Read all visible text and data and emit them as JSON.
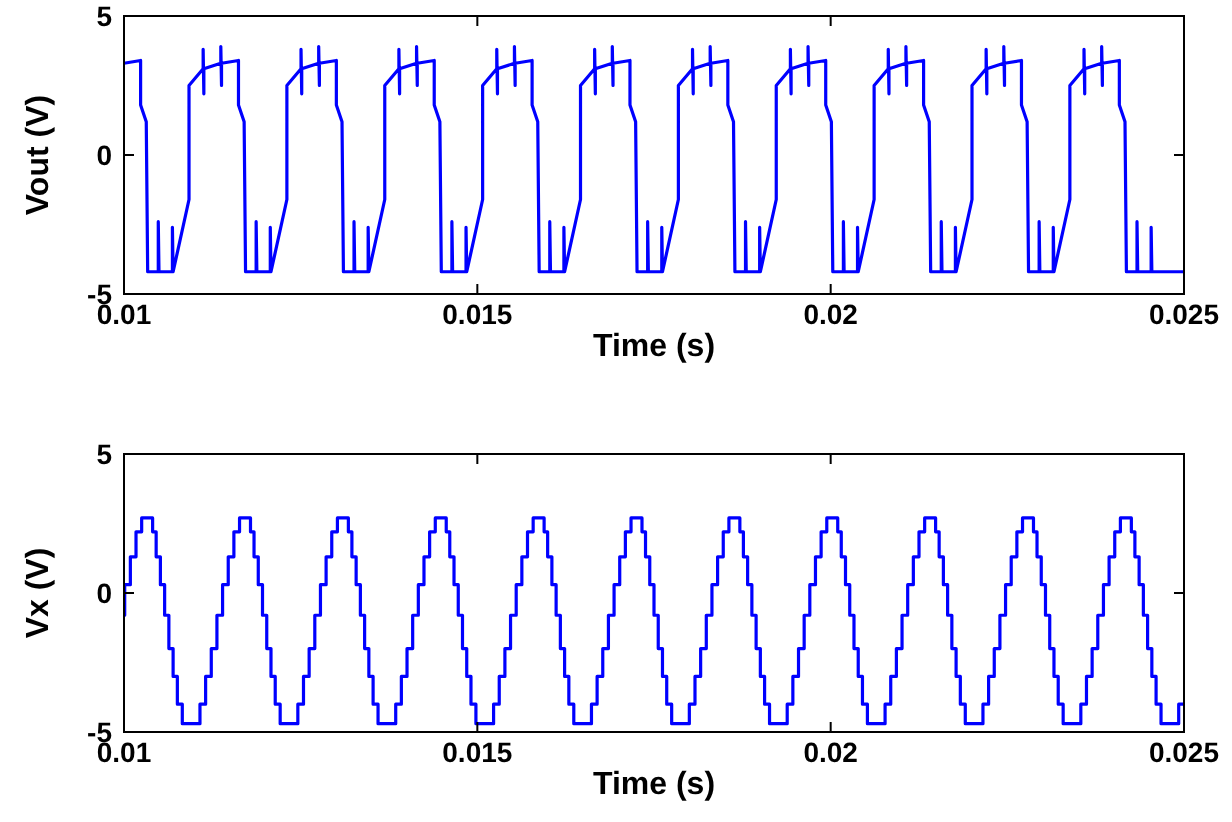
{
  "chart_data": [
    {
      "type": "line",
      "xlabel": "Time (s)",
      "ylabel": "Vout (V)",
      "xlim": [
        0.01,
        0.025
      ],
      "ylim": [
        -5,
        5
      ],
      "xticks": [
        0.01,
        0.015,
        0.02,
        0.025
      ],
      "yticks": [
        -5,
        0,
        5
      ],
      "series": [
        {
          "color": "#0000ff",
          "x": [
            0.01,
            0.010235,
            0.010235,
            0.010315,
            0.010335,
            0.010485,
            0.010485,
            0.010495,
            0.010685,
            0.010685,
            0.010695,
            0.01092,
            0.01092,
            0.01112,
            0.01112,
            0.01113,
            0.01113,
            0.01137,
            0.01137,
            0.01138,
            0.01138,
            0.01162,
            0.01162,
            0.0117,
            0.01172,
            0.01187,
            0.01187,
            0.01188,
            0.01207,
            0.01207,
            0.01208,
            0.012305,
            0.012305,
            0.012505,
            0.012505,
            0.012515,
            0.012515,
            0.012755,
            0.012755,
            0.012765,
            0.012765,
            0.013005,
            0.013005,
            0.013085,
            0.013105,
            0.013255,
            0.013255,
            0.013265,
            0.013455,
            0.013455,
            0.013465,
            0.01369,
            0.01369,
            0.01389,
            0.01389,
            0.0139,
            0.0139,
            0.01414,
            0.01414,
            0.01415,
            0.01415,
            0.01439,
            0.01439,
            0.01447,
            0.01449,
            0.01464,
            0.01464,
            0.01465,
            0.01484,
            0.01484,
            0.01485,
            0.015075,
            0.015075,
            0.015275,
            0.015275,
            0.015285,
            0.015285,
            0.015525,
            0.015525,
            0.015535,
            0.015535,
            0.015775,
            0.015775,
            0.015855,
            0.015875,
            0.016025,
            0.016025,
            0.016035,
            0.016225,
            0.016225,
            0.016235,
            0.01646,
            0.01646,
            0.01666,
            0.01666,
            0.01667,
            0.01667,
            0.01691,
            0.01691,
            0.01692,
            0.01692,
            0.01716,
            0.01716,
            0.01724,
            0.01726,
            0.01741,
            0.01741,
            0.01742,
            0.01761,
            0.01761,
            0.01762,
            0.017845,
            0.017845,
            0.018045,
            0.018045,
            0.018055,
            0.018055,
            0.018295,
            0.018295,
            0.018305,
            0.018305,
            0.018545,
            0.018545,
            0.018625,
            0.018645,
            0.018795,
            0.018795,
            0.018805,
            0.018995,
            0.018995,
            0.019005,
            0.01923,
            0.01923,
            0.01943,
            0.01943,
            0.01944,
            0.01944,
            0.01968,
            0.01968,
            0.01969,
            0.01969,
            0.01993,
            0.01993,
            0.02001,
            0.02003,
            0.02018,
            0.02018,
            0.02019,
            0.02038,
            0.02038,
            0.02039,
            0.020615,
            0.020615,
            0.020815,
            0.020815,
            0.020825,
            0.020825,
            0.021065,
            0.021065,
            0.021075,
            0.021075,
            0.021315,
            0.021315,
            0.021395,
            0.021415,
            0.021565,
            0.021565,
            0.021575,
            0.021765,
            0.021765,
            0.021775,
            0.022,
            0.022,
            0.0222,
            0.0222,
            0.02221,
            0.02221,
            0.02245,
            0.02245,
            0.02246,
            0.02246,
            0.0227,
            0.0227,
            0.02278,
            0.0228,
            0.02295,
            0.02295,
            0.02296,
            0.02315,
            0.02315,
            0.02316,
            0.023385,
            0.023385,
            0.023585,
            0.023585,
            0.023595,
            0.023595,
            0.023835,
            0.023835,
            0.023845,
            0.023845,
            0.024085,
            0.024085,
            0.024165,
            0.024185,
            0.024335,
            0.024335,
            0.024345,
            0.024535,
            0.024535,
            0.024545,
            0.025
          ],
          "values": [
            3.3,
            3.4,
            1.8,
            1.2,
            -4.2,
            -4.2,
            -2.4,
            -4.2,
            -4.2,
            -2.6,
            -4.2,
            -1.6,
            2.5,
            3.1,
            3.8,
            2.2,
            3.1,
            3.3,
            3.9,
            2.5,
            3.3,
            3.4,
            1.8,
            1.2,
            -4.2,
            -4.2,
            -2.4,
            -4.2,
            -4.2,
            -2.6,
            -4.2,
            -1.6,
            2.5,
            3.1,
            3.8,
            2.2,
            3.1,
            3.3,
            3.9,
            2.5,
            3.3,
            3.4,
            1.8,
            1.2,
            -4.2,
            -4.2,
            -2.4,
            -4.2,
            -4.2,
            -2.6,
            -4.2,
            -1.6,
            2.5,
            3.1,
            3.8,
            2.2,
            3.1,
            3.3,
            3.9,
            2.5,
            3.3,
            3.4,
            1.8,
            1.2,
            -4.2,
            -4.2,
            -2.4,
            -4.2,
            -4.2,
            -2.6,
            -4.2,
            -1.6,
            2.5,
            3.1,
            3.8,
            2.2,
            3.1,
            3.3,
            3.9,
            2.5,
            3.3,
            3.4,
            1.8,
            1.2,
            -4.2,
            -4.2,
            -2.4,
            -4.2,
            -4.2,
            -2.6,
            -4.2,
            -1.6,
            2.5,
            3.1,
            3.8,
            2.2,
            3.1,
            3.3,
            3.9,
            2.5,
            3.3,
            3.4,
            1.8,
            1.2,
            -4.2,
            -4.2,
            -2.4,
            -4.2,
            -4.2,
            -2.6,
            -4.2,
            -1.6,
            2.5,
            3.1,
            3.8,
            2.2,
            3.1,
            3.3,
            3.9,
            2.5,
            3.3,
            3.4,
            1.8,
            1.2,
            -4.2,
            -4.2,
            -2.4,
            -4.2,
            -4.2,
            -2.6,
            -4.2,
            -1.6,
            2.5,
            3.1,
            3.8,
            2.2,
            3.1,
            3.3,
            3.9,
            2.5,
            3.3,
            3.4,
            1.8,
            1.2,
            -4.2,
            -4.2,
            -2.4,
            -4.2,
            -4.2,
            -2.6,
            -4.2,
            -1.6,
            2.5,
            3.1,
            3.8,
            2.2,
            3.1,
            3.3,
            3.9,
            2.5,
            3.3,
            3.4,
            1.8,
            1.2,
            -4.2,
            -4.2,
            -2.4,
            -4.2,
            -4.2,
            -2.6,
            -4.2,
            -1.6,
            2.5,
            3.1,
            3.8,
            2.2,
            3.1,
            3.3,
            3.9,
            2.5,
            3.3,
            3.4,
            1.8,
            1.2,
            -4.2,
            -4.2,
            -2.4,
            -4.2,
            -4.2,
            -2.6,
            -4.2,
            -1.6,
            2.5,
            3.1,
            3.8,
            2.2,
            3.1,
            3.3,
            3.9,
            2.5,
            3.3,
            3.4,
            1.8,
            1.2,
            -4.2,
            -4.2,
            -2.4,
            -4.2,
            -4.2,
            -2.6,
            -4.2,
            -4.2
          ]
        }
      ]
    },
    {
      "type": "step",
      "xlabel": "Time (s)",
      "ylabel": "Vx (V)",
      "xlim": [
        0.01,
        0.025
      ],
      "ylim": [
        -5,
        5
      ],
      "xticks": [
        0.01,
        0.015,
        0.02,
        0.025
      ],
      "yticks": [
        -5,
        0,
        5
      ],
      "series": [
        {
          "color": "#0000ff",
          "x": [
            0.01,
            0.01001,
            0.01009,
            0.01017,
            0.01025,
            0.010405,
            0.010455,
            0.010515,
            0.010575,
            0.010635,
            0.010695,
            0.010755,
            0.010825,
            0.011075,
            0.011155,
            0.011235,
            0.011315,
            0.011395,
            0.011475,
            0.011555,
            0.011635,
            0.01179,
            0.01184,
            0.0119,
            0.01196,
            0.01202,
            0.01208,
            0.01214,
            0.01221,
            0.01246,
            0.01254,
            0.01262,
            0.0127,
            0.01278,
            0.01286,
            0.01294,
            0.01302,
            0.013175,
            0.013225,
            0.013285,
            0.013345,
            0.013405,
            0.013465,
            0.013525,
            0.013595,
            0.013845,
            0.013925,
            0.014005,
            0.014085,
            0.014165,
            0.014245,
            0.014325,
            0.014405,
            0.01456,
            0.01461,
            0.01467,
            0.01473,
            0.01479,
            0.01485,
            0.01491,
            0.01498,
            0.01523,
            0.01531,
            0.01539,
            0.01547,
            0.01555,
            0.01563,
            0.01571,
            0.01579,
            0.015945,
            0.015995,
            0.016055,
            0.016115,
            0.016175,
            0.016235,
            0.016295,
            0.016365,
            0.016615,
            0.016695,
            0.016775,
            0.016855,
            0.016935,
            0.017015,
            0.017095,
            0.017175,
            0.01733,
            0.01738,
            0.01744,
            0.0175,
            0.01756,
            0.01762,
            0.01768,
            0.01775,
            0.018,
            0.01808,
            0.01816,
            0.01824,
            0.01832,
            0.0184,
            0.01848,
            0.01856,
            0.018715,
            0.018765,
            0.018825,
            0.018885,
            0.018945,
            0.019005,
            0.019065,
            0.019135,
            0.019385,
            0.019465,
            0.019545,
            0.019625,
            0.019705,
            0.019785,
            0.019865,
            0.019945,
            0.0201,
            0.02015,
            0.02021,
            0.02027,
            0.02033,
            0.02039,
            0.02045,
            0.02052,
            0.02077,
            0.02085,
            0.02093,
            0.02101,
            0.02109,
            0.02117,
            0.02125,
            0.02133,
            0.021485,
            0.021535,
            0.021595,
            0.021655,
            0.021715,
            0.021775,
            0.021835,
            0.021905,
            0.022155,
            0.022235,
            0.022315,
            0.022395,
            0.022475,
            0.022555,
            0.022635,
            0.022715,
            0.02287,
            0.02292,
            0.02298,
            0.02304,
            0.0231,
            0.02316,
            0.02322,
            0.02329,
            0.02354,
            0.02362,
            0.0237,
            0.02378,
            0.02386,
            0.02394,
            0.02402,
            0.0241,
            0.024255,
            0.024305,
            0.024365,
            0.024425,
            0.024485,
            0.024545,
            0.024605,
            0.024675,
            0.024925,
            0.025
          ],
          "values": [
            -0.8,
            0.3,
            1.3,
            2.2,
            2.7,
            2.2,
            1.3,
            0.3,
            -0.8,
            -2.0,
            -3.0,
            -4.0,
            -4.7,
            -4.0,
            -3.0,
            -2.0,
            -0.8,
            0.3,
            1.3,
            2.2,
            2.7,
            2.2,
            1.3,
            0.3,
            -0.8,
            -2.0,
            -3.0,
            -4.0,
            -4.7,
            -4.0,
            -3.0,
            -2.0,
            -0.8,
            0.3,
            1.3,
            2.2,
            2.7,
            2.2,
            1.3,
            0.3,
            -0.8,
            -2.0,
            -3.0,
            -4.0,
            -4.7,
            -4.0,
            -3.0,
            -2.0,
            -0.8,
            0.3,
            1.3,
            2.2,
            2.7,
            2.2,
            1.3,
            0.3,
            -0.8,
            -2.0,
            -3.0,
            -4.0,
            -4.7,
            -4.0,
            -3.0,
            -2.0,
            -0.8,
            0.3,
            1.3,
            2.2,
            2.7,
            2.2,
            1.3,
            0.3,
            -0.8,
            -2.0,
            -3.0,
            -4.0,
            -4.7,
            -4.0,
            -3.0,
            -2.0,
            -0.8,
            0.3,
            1.3,
            2.2,
            2.7,
            2.2,
            1.3,
            0.3,
            -0.8,
            -2.0,
            -3.0,
            -4.0,
            -4.7,
            -4.0,
            -3.0,
            -2.0,
            -0.8,
            0.3,
            1.3,
            2.2,
            2.7,
            2.2,
            1.3,
            0.3,
            -0.8,
            -2.0,
            -3.0,
            -4.0,
            -4.7,
            -4.0,
            -3.0,
            -2.0,
            -0.8,
            0.3,
            1.3,
            2.2,
            2.7,
            2.2,
            1.3,
            0.3,
            -0.8,
            -2.0,
            -3.0,
            -4.0,
            -4.7,
            -4.0,
            -3.0,
            -2.0,
            -0.8,
            0.3,
            1.3,
            2.2,
            2.7,
            2.2,
            1.3,
            0.3,
            -0.8,
            -2.0,
            -3.0,
            -4.0,
            -4.7,
            -4.0,
            -3.0,
            -2.0,
            -0.8,
            0.3,
            1.3,
            2.2,
            2.7,
            2.2,
            1.3,
            0.3,
            -0.8,
            -2.0,
            -3.0,
            -4.0,
            -4.7,
            -4.0,
            -3.0,
            -2.0,
            -0.8,
            0.3,
            1.3,
            2.2,
            2.7,
            2.2,
            1.3,
            0.3,
            -0.8,
            -2.0,
            -3.0,
            -4.0,
            -4.7,
            -4.0,
            -4.0
          ]
        }
      ]
    }
  ]
}
